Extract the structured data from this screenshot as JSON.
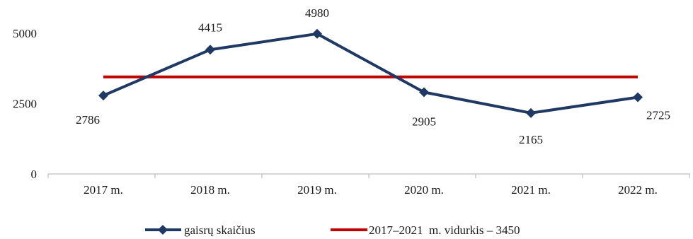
{
  "chart_data": {
    "type": "line",
    "title": "",
    "xlabel": "",
    "ylabel": "",
    "categories": [
      "2017 m.",
      "2018 m.",
      "2019 m.",
      "2020 m.",
      "2021 m.",
      "2022 m."
    ],
    "ylim": [
      0,
      5000
    ],
    "yticks": [
      0,
      2500,
      5000
    ],
    "ytick_labels": [
      "0",
      "2500",
      "5000"
    ],
    "grid": false,
    "legend_position": "bottom",
    "series": [
      {
        "name": "gaisrų skaičius",
        "values": [
          2786,
          4415,
          4980,
          2905,
          2165,
          2725
        ],
        "data_labels": [
          "2786",
          "4415",
          "4980",
          "2905",
          "2165",
          "2725"
        ],
        "color": "#1f3864",
        "marker": "diamond"
      },
      {
        "name": "2017–2021  m. vidurkis – 3450",
        "values": [
          3450,
          3450,
          3450,
          3450,
          3450,
          3450
        ],
        "color": "#c00000",
        "marker": "none"
      }
    ]
  }
}
